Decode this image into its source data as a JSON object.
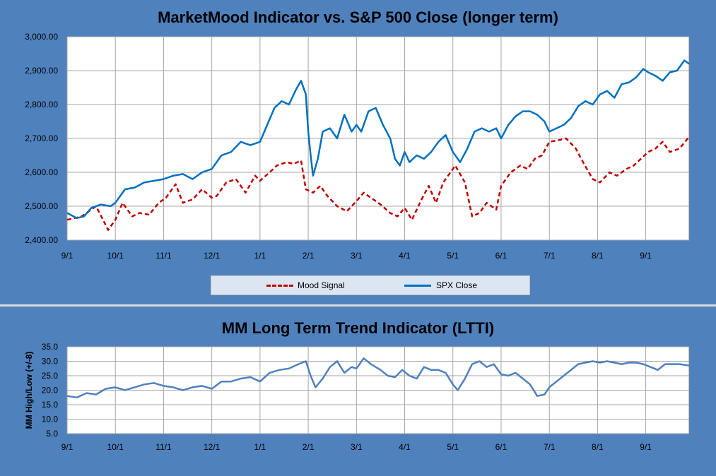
{
  "chart_data": [
    {
      "type": "line",
      "title": "MarketMood Indicator vs. S&P 500 Close (longer term)",
      "y_tick_labels": [
        "3,000.00",
        "2,900.00",
        "2,800.00",
        "2,700.00",
        "2,600.00",
        "2,500.00",
        "2,400.00"
      ],
      "x_tick_labels": [
        "9/1",
        "10/1",
        "11/1",
        "12/1",
        "1/1",
        "2/1",
        "3/1",
        "4/1",
        "5/1",
        "6/1",
        "7/1",
        "8/1",
        "9/1"
      ],
      "ylim": [
        2400,
        3000
      ],
      "xlim": [
        0,
        12.9
      ],
      "grid": true,
      "legend_position": "bottom",
      "series": [
        {
          "name": "Mood Signal",
          "color": "#c00000",
          "style": "dashed",
          "x": [
            0,
            0.3,
            0.6,
            0.85,
            1.0,
            1.15,
            1.35,
            1.5,
            1.7,
            1.9,
            2.05,
            2.25,
            2.4,
            2.6,
            2.8,
            3.0,
            3.1,
            3.3,
            3.5,
            3.7,
            3.9,
            4.0,
            4.2,
            4.35,
            4.55,
            4.7,
            4.85,
            4.95,
            5.1,
            5.25,
            5.4,
            5.6,
            5.8,
            6.0,
            6.15,
            6.35,
            6.5,
            6.7,
            6.85,
            7.0,
            7.15,
            7.35,
            7.5,
            7.65,
            7.8,
            7.95,
            8.05,
            8.25,
            8.4,
            8.55,
            8.7,
            8.9,
            9.0,
            9.2,
            9.4,
            9.55,
            9.7,
            9.85,
            10.0,
            10.2,
            10.35,
            10.55,
            10.7,
            10.9,
            11.05,
            11.25,
            11.4,
            11.6,
            11.75,
            11.9,
            12.05,
            12.2,
            12.35,
            12.5,
            12.7,
            12.9
          ],
          "y": [
            2460,
            2470,
            2500,
            2430,
            2460,
            2510,
            2470,
            2480,
            2475,
            2510,
            2525,
            2565,
            2510,
            2520,
            2550,
            2525,
            2530,
            2570,
            2580,
            2540,
            2590,
            2575,
            2600,
            2620,
            2630,
            2625,
            2635,
            2550,
            2540,
            2560,
            2530,
            2500,
            2485,
            2515,
            2540,
            2520,
            2505,
            2480,
            2470,
            2495,
            2460,
            2520,
            2560,
            2510,
            2570,
            2600,
            2620,
            2570,
            2470,
            2480,
            2510,
            2490,
            2560,
            2600,
            2620,
            2610,
            2640,
            2650,
            2690,
            2695,
            2700,
            2670,
            2630,
            2580,
            2570,
            2600,
            2590,
            2610,
            2620,
            2640,
            2660,
            2670,
            2690,
            2660,
            2670,
            2705
          ]
        },
        {
          "name": "SPX Close",
          "color": "#0070c0",
          "style": "solid",
          "x": [
            0,
            0.2,
            0.35,
            0.5,
            0.7,
            0.9,
            1.0,
            1.2,
            1.4,
            1.6,
            1.8,
            2.0,
            2.2,
            2.4,
            2.6,
            2.8,
            3.0,
            3.2,
            3.4,
            3.6,
            3.8,
            4.0,
            4.15,
            4.3,
            4.45,
            4.6,
            4.75,
            4.85,
            4.95,
            5.0,
            5.05,
            5.1,
            5.2,
            5.3,
            5.45,
            5.6,
            5.75,
            5.9,
            6.0,
            6.1,
            6.25,
            6.4,
            6.55,
            6.7,
            6.8,
            6.9,
            7.0,
            7.1,
            7.25,
            7.4,
            7.55,
            7.7,
            7.85,
            8.0,
            8.15,
            8.3,
            8.45,
            8.6,
            8.75,
            8.9,
            9.0,
            9.15,
            9.3,
            9.45,
            9.6,
            9.75,
            9.9,
            10.0,
            10.15,
            10.3,
            10.45,
            10.6,
            10.75,
            10.9,
            11.05,
            11.2,
            11.35,
            11.5,
            11.65,
            11.8,
            11.95,
            12.05,
            12.2,
            12.35,
            12.5,
            12.65,
            12.8,
            12.9
          ],
          "y": [
            2480,
            2465,
            2470,
            2495,
            2505,
            2500,
            2510,
            2550,
            2555,
            2570,
            2575,
            2580,
            2590,
            2595,
            2580,
            2600,
            2610,
            2650,
            2660,
            2690,
            2680,
            2690,
            2740,
            2790,
            2810,
            2800,
            2845,
            2870,
            2830,
            2720,
            2650,
            2590,
            2640,
            2720,
            2730,
            2700,
            2770,
            2720,
            2740,
            2720,
            2780,
            2790,
            2740,
            2700,
            2640,
            2620,
            2660,
            2630,
            2650,
            2640,
            2660,
            2690,
            2710,
            2660,
            2630,
            2670,
            2720,
            2730,
            2720,
            2730,
            2700,
            2740,
            2765,
            2780,
            2780,
            2770,
            2750,
            2720,
            2730,
            2740,
            2760,
            2795,
            2810,
            2800,
            2830,
            2840,
            2820,
            2860,
            2865,
            2880,
            2905,
            2895,
            2885,
            2870,
            2895,
            2900,
            2930,
            2920
          ]
        }
      ]
    },
    {
      "type": "line",
      "title": "MM Long Term Trend Indicator (LTTI)",
      "ylabel": "MM High/Low (+/-8)",
      "y_tick_labels": [
        "35.0",
        "30.0",
        "25.0",
        "20.0",
        "15.0",
        "10.0",
        "5.0"
      ],
      "x_tick_labels": [
        "9/1",
        "10/1",
        "11/1",
        "12/1",
        "1/1",
        "2/1",
        "3/1",
        "4/1",
        "5/1",
        "6/1",
        "7/1",
        "8/1",
        "9/1"
      ],
      "ylim": [
        5,
        35
      ],
      "xlim": [
        0,
        12.9
      ],
      "grid": true,
      "series": [
        {
          "name": "",
          "color": "#4f81bd",
          "style": "solid",
          "x": [
            0,
            0.2,
            0.4,
            0.6,
            0.8,
            1.0,
            1.2,
            1.4,
            1.6,
            1.8,
            2.0,
            2.2,
            2.4,
            2.6,
            2.8,
            3.0,
            3.2,
            3.4,
            3.6,
            3.8,
            4.0,
            4.2,
            4.4,
            4.6,
            4.8,
            4.95,
            5.05,
            5.15,
            5.3,
            5.45,
            5.6,
            5.75,
            5.9,
            6.0,
            6.15,
            6.3,
            6.5,
            6.65,
            6.8,
            6.95,
            7.1,
            7.25,
            7.4,
            7.55,
            7.7,
            7.85,
            8.0,
            8.1,
            8.25,
            8.4,
            8.55,
            8.7,
            8.85,
            9.0,
            9.15,
            9.3,
            9.45,
            9.6,
            9.75,
            9.9,
            10.0,
            10.15,
            10.3,
            10.45,
            10.6,
            10.75,
            10.9,
            11.05,
            11.2,
            11.35,
            11.5,
            11.65,
            11.8,
            11.95,
            12.1,
            12.25,
            12.4,
            12.55,
            12.7,
            12.9
          ],
          "y": [
            18,
            17.5,
            19,
            18.5,
            20.5,
            21,
            20,
            21,
            22,
            22.5,
            21.5,
            21,
            20,
            21,
            21.5,
            20.5,
            23,
            23,
            24,
            24.5,
            23,
            26,
            27,
            27.5,
            29,
            30,
            25,
            21,
            24,
            28,
            30,
            26,
            28,
            27.5,
            31,
            29,
            27,
            25,
            24.5,
            27,
            25,
            24,
            28,
            27,
            27,
            26,
            22,
            20,
            24,
            29,
            30,
            28,
            29,
            25.5,
            25,
            26,
            24,
            22,
            18,
            18.5,
            21,
            23,
            25,
            27,
            29,
            29.5,
            30,
            29.5,
            30,
            29.5,
            29,
            29.5,
            29.5,
            29,
            28,
            27,
            29,
            29,
            29,
            28.5
          ]
        }
      ]
    }
  ]
}
